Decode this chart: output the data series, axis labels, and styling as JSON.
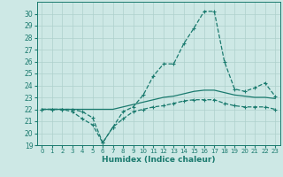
{
  "xlabel": "Humidex (Indice chaleur)",
  "x": [
    0,
    1,
    2,
    3,
    4,
    5,
    6,
    7,
    8,
    9,
    10,
    11,
    12,
    13,
    14,
    15,
    16,
    17,
    18,
    19,
    20,
    21,
    22,
    23
  ],
  "line_max": [
    22,
    22,
    22,
    21.8,
    21.2,
    20.7,
    19.2,
    20.5,
    21.8,
    22.2,
    23.2,
    24.8,
    25.8,
    25.8,
    27.5,
    28.8,
    30.2,
    30.2,
    26.0,
    23.7,
    23.5,
    23.8,
    24.2,
    23.1
  ],
  "line_min": [
    22,
    22,
    22,
    22,
    21.8,
    21.3,
    19.2,
    20.5,
    21.2,
    21.8,
    22.0,
    22.2,
    22.3,
    22.5,
    22.7,
    22.8,
    22.8,
    22.8,
    22.5,
    22.3,
    22.2,
    22.2,
    22.2,
    22.0
  ],
  "line_avg": [
    22,
    22,
    22,
    22,
    22,
    22,
    22,
    22,
    22.2,
    22.4,
    22.6,
    22.8,
    23.0,
    23.1,
    23.3,
    23.5,
    23.6,
    23.6,
    23.4,
    23.2,
    23.1,
    23.0,
    23.0,
    22.9
  ],
  "ylim": [
    19,
    31
  ],
  "xlim": [
    -0.5,
    23.5
  ],
  "yticks": [
    19,
    20,
    21,
    22,
    23,
    24,
    25,
    26,
    27,
    28,
    29,
    30
  ],
  "xticks": [
    0,
    1,
    2,
    3,
    4,
    5,
    6,
    7,
    8,
    9,
    10,
    11,
    12,
    13,
    14,
    15,
    16,
    17,
    18,
    19,
    20,
    21,
    22,
    23
  ],
  "line_color": "#1a7a6e",
  "bg_color": "#cde8e5",
  "grid_color": "#aed0cc"
}
